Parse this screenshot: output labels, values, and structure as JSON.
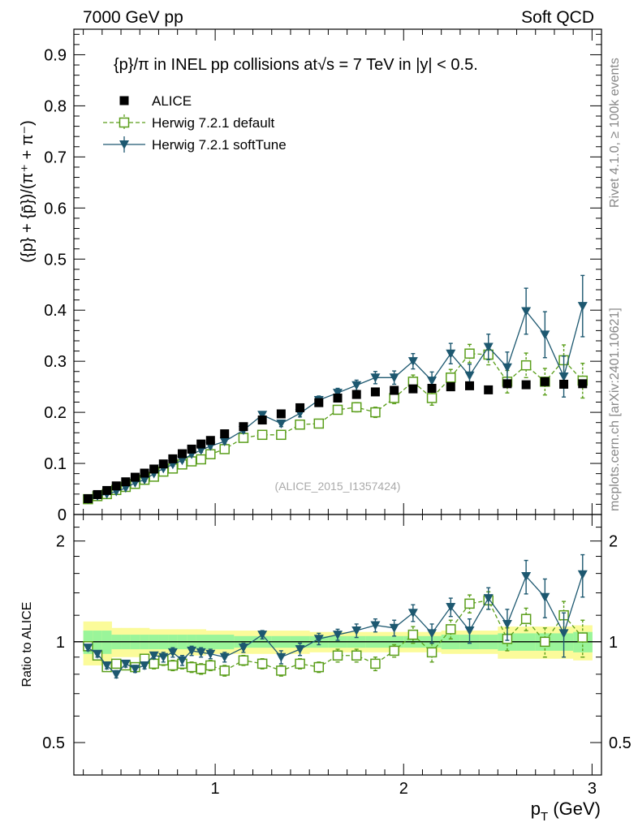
{
  "header": {
    "left": "7000 GeV pp",
    "right": "Soft QCD"
  },
  "side_labels": {
    "rivet": "Rivet 4.1.0, ≥ 100k events",
    "mcplots": "mcplots.cern.ch [arXiv:2401.10621]"
  },
  "chart_data": [
    {
      "type": "scatter",
      "panel": "main",
      "title": "{p}/π in INEL pp collisions at√s = 7 TeV in |y| < 0.5.",
      "ylabel": "({p} + {p̄})/(π⁺ + π⁻)",
      "xlabel": "",
      "watermark": "(ALICE_2015_I1357424)",
      "xlim": [
        0.25,
        3.05
      ],
      "ylim": [
        0,
        0.95
      ],
      "yticks": [
        0,
        0.1,
        0.2,
        0.3,
        0.4,
        0.5,
        0.6,
        0.7,
        0.8,
        0.9
      ],
      "ytick_labels": [
        "0",
        "0.1",
        "0.2",
        "0.3",
        "0.4",
        "0.5",
        "0.6",
        "0.7",
        "0.8",
        "0.9"
      ],
      "legend_position": "top-left",
      "x": [
        0.325,
        0.375,
        0.425,
        0.475,
        0.525,
        0.575,
        0.625,
        0.675,
        0.725,
        0.775,
        0.825,
        0.875,
        0.925,
        0.975,
        1.05,
        1.15,
        1.25,
        1.35,
        1.45,
        1.55,
        1.65,
        1.75,
        1.85,
        1.95,
        2.05,
        2.15,
        2.25,
        2.35,
        2.45,
        2.55,
        2.65,
        2.75,
        2.85,
        2.95
      ],
      "series": [
        {
          "name": "ALICE",
          "style": "square-filled",
          "color": "#000000",
          "values": [
            0.031,
            0.039,
            0.047,
            0.056,
            0.064,
            0.073,
            0.081,
            0.089,
            0.099,
            0.109,
            0.119,
            0.128,
            0.138,
            0.145,
            0.158,
            0.172,
            0.185,
            0.197,
            0.209,
            0.219,
            0.228,
            0.235,
            0.24,
            0.243,
            0.246,
            0.247,
            0.25,
            0.252,
            0.244,
            0.256,
            0.254,
            0.26,
            0.255,
            0.256
          ]
        },
        {
          "name": "Herwig 7.2.1 default",
          "style": "square-open-dashed",
          "color": "#5a9e1a",
          "values": [
            0.03,
            0.036,
            0.04,
            0.048,
            0.054,
            0.06,
            0.068,
            0.074,
            0.084,
            0.09,
            0.098,
            0.104,
            0.108,
            0.118,
            0.128,
            0.15,
            0.156,
            0.156,
            0.176,
            0.178,
            0.205,
            0.21,
            0.2,
            0.228,
            0.26,
            0.228,
            0.268,
            0.315,
            0.313,
            0.26,
            0.292,
            0.26,
            0.302,
            0.262
          ],
          "errors": [
            0.002,
            0.002,
            0.002,
            0.002,
            0.002,
            0.002,
            0.002,
            0.003,
            0.003,
            0.003,
            0.003,
            0.003,
            0.004,
            0.004,
            0.004,
            0.005,
            0.005,
            0.006,
            0.006,
            0.007,
            0.008,
            0.009,
            0.01,
            0.011,
            0.013,
            0.014,
            0.016,
            0.018,
            0.02,
            0.022,
            0.024,
            0.026,
            0.03,
            0.034
          ]
        },
        {
          "name": "Herwig 7.2.1 softTune",
          "style": "triangle-down-solid",
          "color": "#1d5870",
          "values": [
            0.03,
            0.036,
            0.04,
            0.045,
            0.052,
            0.062,
            0.068,
            0.08,
            0.09,
            0.098,
            0.106,
            0.118,
            0.126,
            0.134,
            0.143,
            0.165,
            0.195,
            0.178,
            0.198,
            0.224,
            0.238,
            0.253,
            0.268,
            0.268,
            0.3,
            0.262,
            0.315,
            0.272,
            0.328,
            0.288,
            0.398,
            0.352,
            0.27,
            0.408
          ],
          "errors": [
            0.002,
            0.002,
            0.002,
            0.002,
            0.002,
            0.002,
            0.003,
            0.003,
            0.003,
            0.003,
            0.003,
            0.004,
            0.004,
            0.004,
            0.005,
            0.005,
            0.006,
            0.006,
            0.007,
            0.008,
            0.009,
            0.01,
            0.012,
            0.013,
            0.015,
            0.017,
            0.02,
            0.022,
            0.025,
            0.03,
            0.045,
            0.045,
            0.04,
            0.06
          ]
        }
      ]
    },
    {
      "type": "scatter",
      "panel": "ratio",
      "ylabel": "Ratio to ALICE",
      "xlabel": "p_T (GeV)",
      "xlim": [
        0.25,
        3.05
      ],
      "ylim": [
        0.4,
        2.4
      ],
      "scale": "log",
      "yticks": [
        0.5,
        1,
        2
      ],
      "ytick_labels": [
        "0.5",
        "1",
        "2"
      ],
      "xticks": [
        1,
        2,
        3
      ],
      "xtick_labels": [
        "1",
        "2",
        "3"
      ],
      "band_stat_half_width": [
        0.08,
        0.08,
        0.08,
        0.05,
        0.05,
        0.05,
        0.05,
        0.05,
        0.05,
        0.05,
        0.05,
        0.05,
        0.05,
        0.05,
        0.05,
        0.04,
        0.04,
        0.04,
        0.04,
        0.04,
        0.04,
        0.04,
        0.04,
        0.04,
        0.04,
        0.04,
        0.05,
        0.05,
        0.05,
        0.06,
        0.06,
        0.06,
        0.06,
        0.07
      ],
      "band_total_half_width": [
        0.15,
        0.15,
        0.15,
        0.1,
        0.1,
        0.1,
        0.1,
        0.09,
        0.09,
        0.09,
        0.09,
        0.09,
        0.09,
        0.08,
        0.08,
        0.08,
        0.08,
        0.08,
        0.08,
        0.07,
        0.07,
        0.07,
        0.07,
        0.07,
        0.07,
        0.07,
        0.08,
        0.08,
        0.08,
        0.11,
        0.11,
        0.11,
        0.11,
        0.12
      ],
      "series": [
        {
          "name": "Herwig 7.2.1 default",
          "values": [
            0.97,
            0.91,
            0.84,
            0.86,
            0.85,
            0.84,
            0.89,
            0.86,
            0.88,
            0.85,
            0.86,
            0.84,
            0.83,
            0.85,
            0.82,
            0.88,
            0.86,
            0.82,
            0.86,
            0.84,
            0.91,
            0.91,
            0.86,
            0.94,
            1.05,
            0.93,
            1.09,
            1.3,
            1.33,
            1.02,
            1.17,
            1.0,
            1.2,
            1.03
          ],
          "errors": [
            0.02,
            0.02,
            0.02,
            0.02,
            0.02,
            0.02,
            0.02,
            0.03,
            0.03,
            0.03,
            0.03,
            0.03,
            0.03,
            0.03,
            0.03,
            0.03,
            0.03,
            0.03,
            0.03,
            0.03,
            0.04,
            0.04,
            0.04,
            0.04,
            0.06,
            0.06,
            0.07,
            0.08,
            0.08,
            0.08,
            0.09,
            0.1,
            0.12,
            0.13
          ]
        },
        {
          "name": "Herwig 7.2.1 softTune",
          "values": [
            0.96,
            0.92,
            0.85,
            0.8,
            0.86,
            0.83,
            0.85,
            0.91,
            0.9,
            0.93,
            0.88,
            0.94,
            0.93,
            0.92,
            0.9,
            0.96,
            1.05,
            0.9,
            0.95,
            1.02,
            1.05,
            1.08,
            1.12,
            1.1,
            1.22,
            1.06,
            1.27,
            1.08,
            1.35,
            1.13,
            1.57,
            1.36,
            1.06,
            1.59
          ],
          "errors": [
            0.02,
            0.02,
            0.02,
            0.02,
            0.02,
            0.02,
            0.02,
            0.02,
            0.03,
            0.03,
            0.03,
            0.03,
            0.03,
            0.03,
            0.03,
            0.03,
            0.03,
            0.04,
            0.04,
            0.04,
            0.04,
            0.05,
            0.05,
            0.06,
            0.07,
            0.07,
            0.08,
            0.09,
            0.1,
            0.12,
            0.18,
            0.18,
            0.16,
            0.23
          ]
        }
      ]
    }
  ]
}
